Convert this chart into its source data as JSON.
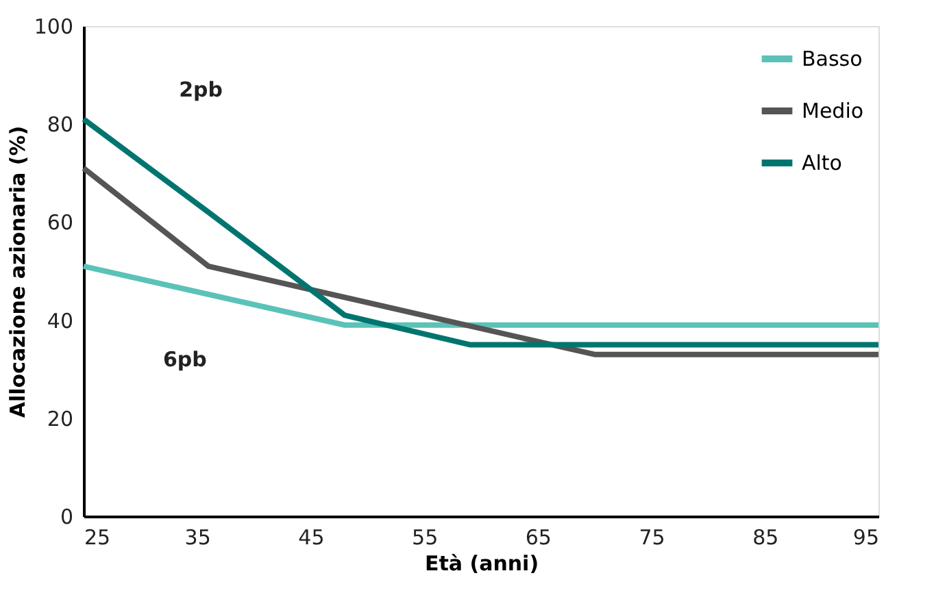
{
  "chart_data": {
    "type": "line",
    "xlabel": "Età (anni)",
    "ylabel": "Allocazione azionaria (%)",
    "xlim": [
      25,
      95
    ],
    "xticks": [
      25,
      35,
      45,
      55,
      65,
      75,
      85,
      95
    ],
    "ylim": [
      0,
      100
    ],
    "yticks": [
      0,
      20,
      40,
      60,
      80,
      100
    ],
    "grid": false,
    "legend": "top right",
    "marker": "none",
    "line_style": "solid",
    "annotations": [
      "2pb",
      "6pb"
    ],
    "series": [
      {
        "name": "Basso",
        "color": "#5bc2b8",
        "x": [
          25,
          48,
          95
        ],
        "values": [
          51,
          39,
          39
        ]
      },
      {
        "name": "Medio",
        "color": "#555555",
        "x": [
          25,
          36,
          70,
          95
        ],
        "values": [
          71,
          51,
          33,
          33
        ]
      },
      {
        "name": "Alto",
        "color": "#007570",
        "x": [
          25,
          36,
          48,
          59,
          95
        ],
        "values": [
          81,
          62,
          41,
          35,
          35
        ]
      }
    ]
  }
}
